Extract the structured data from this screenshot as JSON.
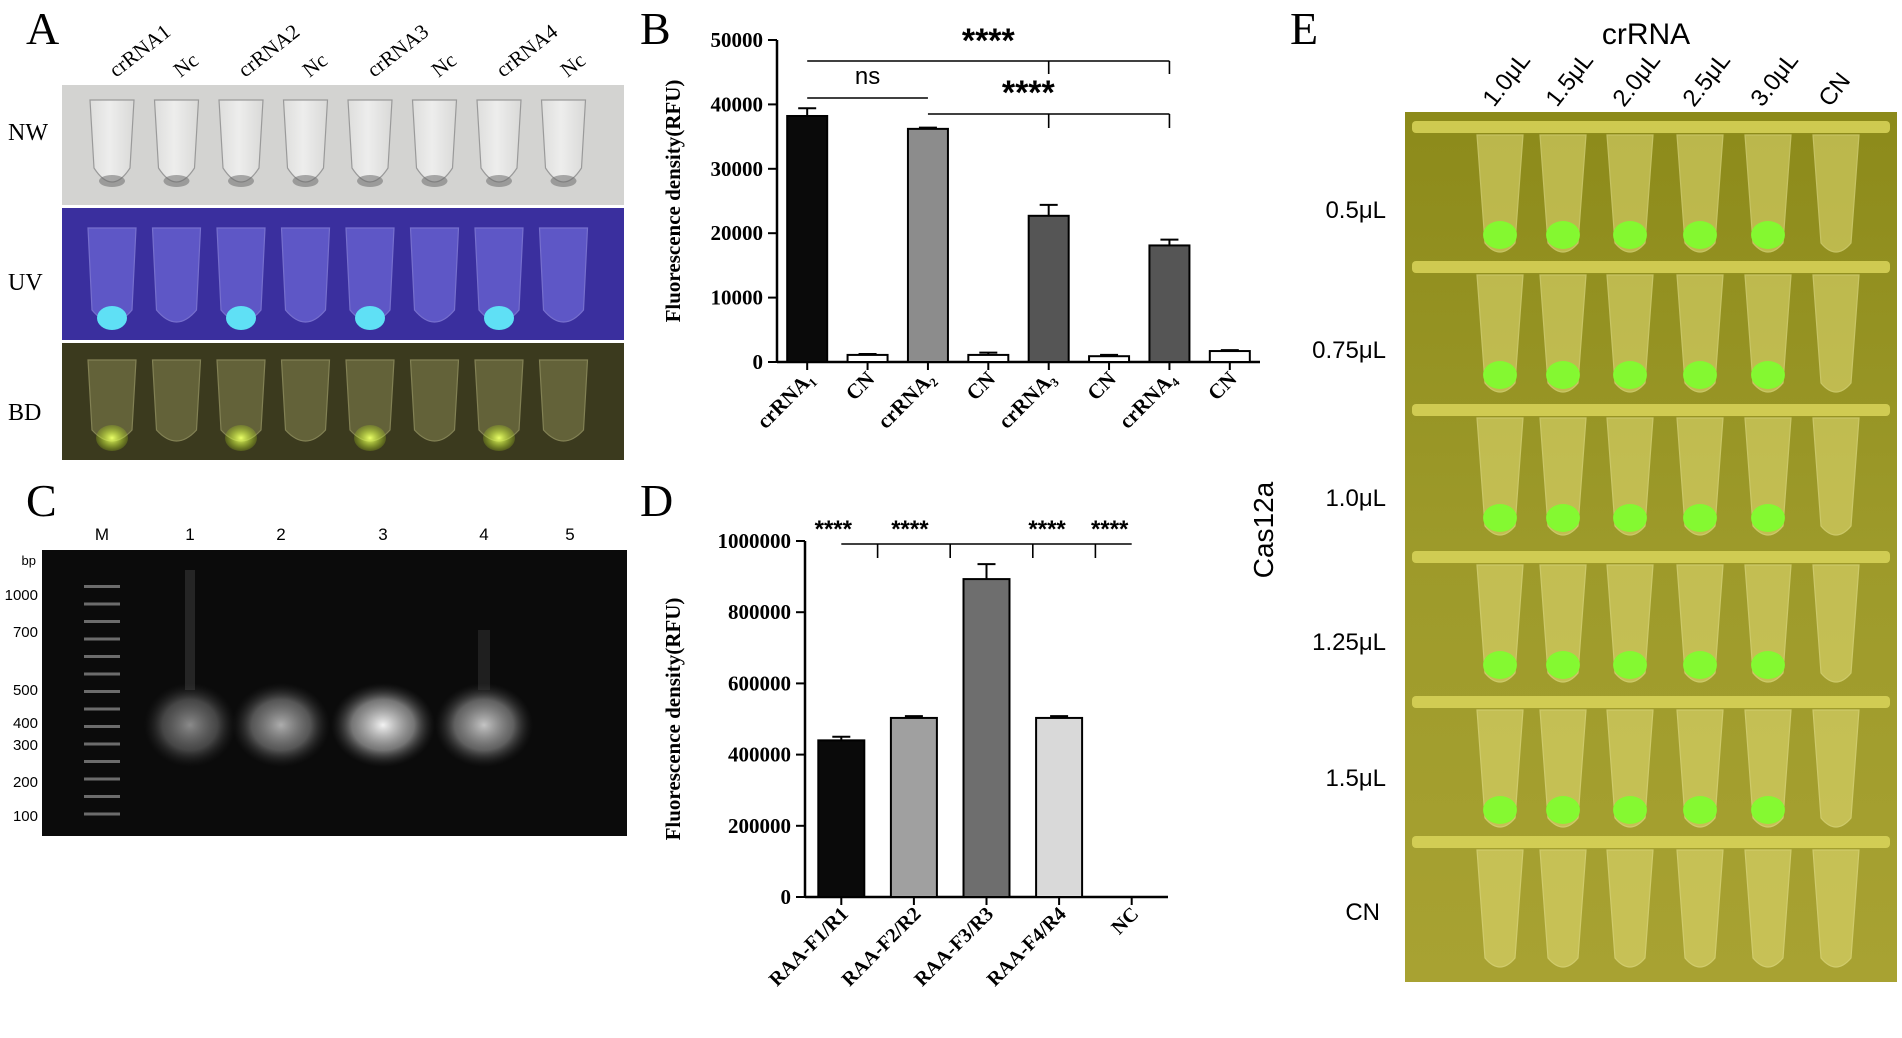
{
  "panels": {
    "A": {
      "letter": "A",
      "lanes": [
        "crRNA1",
        "Nc",
        "crRNA2",
        "Nc",
        "crRNA3",
        "Nc",
        "crRNA4",
        "Nc"
      ],
      "rows": [
        "NW",
        "UV",
        "BD"
      ],
      "positive_lanes": [
        0,
        2,
        4,
        6
      ]
    },
    "B": {
      "letter": "B"
    },
    "C": {
      "letter": "C",
      "lane_labels": [
        "M",
        "1",
        "2",
        "3",
        "4",
        "5"
      ],
      "unit": "bp",
      "ladder": [
        "1000",
        "700",
        "500",
        "400",
        "300",
        "200",
        "100"
      ]
    },
    "D": {
      "letter": "D"
    },
    "E": {
      "letter": "E",
      "col_title": "crRNA",
      "cols": [
        "1.0μL",
        "1.5μL",
        "2.0μL",
        "2.5μL",
        "3.0μL",
        "CN"
      ],
      "row_title": "Cas12a",
      "rows": [
        "0.5μL",
        "0.75μL",
        "1.0μL",
        "1.25μL",
        "1.5μL",
        "CN"
      ]
    }
  },
  "chart_data": [
    {
      "panel": "B",
      "type": "bar",
      "ylabel": "Fluorescence density(RFU)",
      "ylim": [
        0,
        50000
      ],
      "yticks": [
        "0",
        "10000",
        "20000",
        "30000",
        "40000",
        "50000"
      ],
      "categories": [
        "crRNA₁",
        "CN",
        "crRNA₂",
        "CN",
        "crRNA₃",
        "CN",
        "crRNA₄",
        "CN"
      ],
      "values": [
        38200,
        1100,
        36200,
        1100,
        22700,
        900,
        18100,
        1700
      ],
      "errors": [
        1200,
        150,
        200,
        350,
        1700,
        200,
        900,
        150
      ],
      "colors": [
        "#0a0a0a",
        "#ffffff",
        "#8c8c8c",
        "#ffffff",
        "#555555",
        "#ffffff",
        "#555555",
        "#ffffff"
      ],
      "annotations": [
        "****",
        "ns",
        "****"
      ]
    },
    {
      "panel": "D",
      "type": "bar",
      "ylabel": "Fluorescence density(RFU)",
      "ylim": [
        0,
        1000000
      ],
      "yticks": [
        "0",
        "200000",
        "400000",
        "600000",
        "800000",
        "1000000"
      ],
      "categories": [
        "RAA-F1/R1",
        "RAA-F2/R2",
        "RAA-F3/R3",
        "RAA-F4/R4",
        "NC"
      ],
      "values": [
        440000,
        503000,
        893000,
        503000,
        0
      ],
      "errors": [
        10000,
        5000,
        42000,
        5000,
        0
      ],
      "colors": [
        "#0a0a0a",
        "#a0a0a0",
        "#6e6e6e",
        "#d9d9d9",
        "#ffffff"
      ],
      "annotations": [
        "****",
        "****",
        "****",
        "****"
      ]
    }
  ]
}
